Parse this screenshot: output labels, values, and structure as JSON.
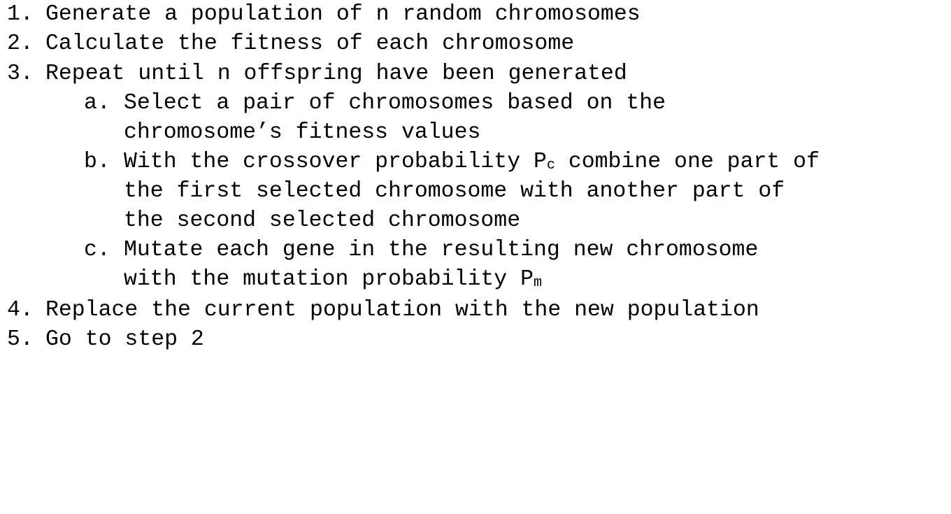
{
  "steps": [
    {
      "num": "1.",
      "text": "Generate a population of n random chromosomes"
    },
    {
      "num": "2.",
      "text": "Calculate the fitness of each chromosome"
    },
    {
      "num": "3.",
      "text": "Repeat until n offspring have been generated"
    },
    {
      "num": "4.",
      "text": "Replace the current population with the new population"
    },
    {
      "num": "5.",
      "text": "Go to step 2"
    }
  ],
  "substeps": {
    "a": {
      "num": "a.",
      "line1": "Select a pair of chromosomes based on the",
      "line2": "chromosome’s fitness values"
    },
    "b": {
      "num": "b.",
      "line1_pre": "With the crossover probability P",
      "line1_sub": "c",
      "line1_post": " combine one part of",
      "line2": "the first selected chromosome with another part of",
      "line3": "the second selected chromosome"
    },
    "c": {
      "num": "c.",
      "line1": "Mutate each gene in the resulting new chromosome",
      "line2_pre": "with the mutation probability P",
      "line2_sub": "m"
    }
  }
}
